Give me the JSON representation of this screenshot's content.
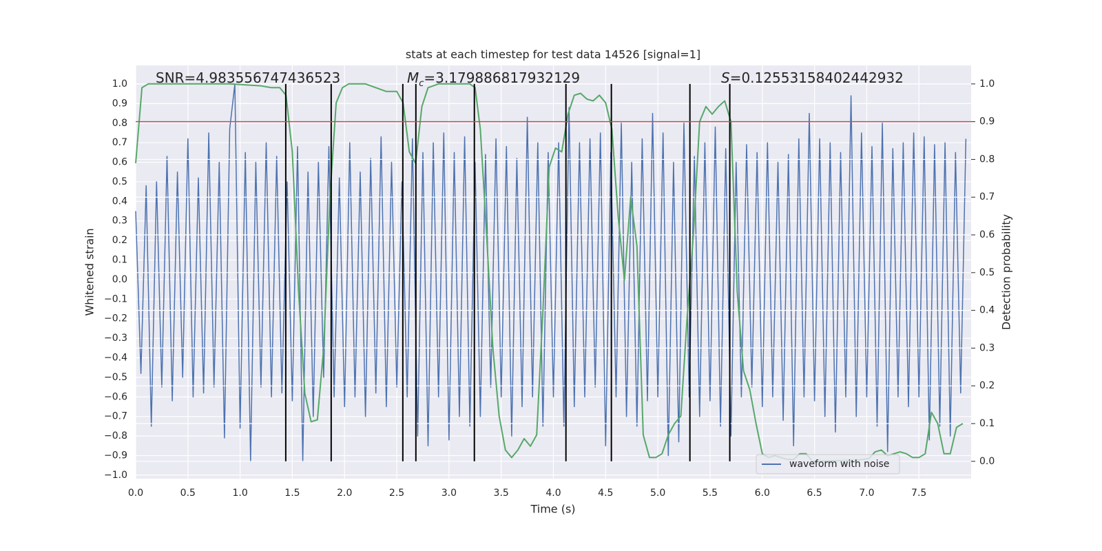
{
  "chart_data": {
    "type": "line",
    "title": "stats at each timestep for test data 14526 [signal=1]",
    "xlabel": "Time (s)",
    "ylabel": "Whitened strain",
    "y2label": "Detection probability",
    "annotations": [
      {
        "text": "SNR=4.983556747436523"
      },
      {
        "symbol": "M",
        "subscript": "c",
        "text": "=3.179886817932129"
      },
      {
        "symbol": "S",
        "text": "=0.12553158402442932"
      }
    ],
    "xlim": [
      0,
      8.0
    ],
    "xticks": [
      {
        "value": 0,
        "label": "0.0"
      },
      0.5,
      {
        "value": 1,
        "label": "1.0"
      },
      1.5,
      {
        "value": 2,
        "label": "2.0"
      },
      2.5,
      {
        "value": 3,
        "label": "3.0"
      },
      3.5,
      {
        "value": 4,
        "label": "4.0"
      },
      4.5,
      {
        "value": 5,
        "label": "5.0"
      },
      5.5,
      {
        "value": 6,
        "label": "6.0"
      },
      6.5,
      {
        "value": 7,
        "label": "7.0"
      },
      7.5
    ],
    "ylim": [
      -1.018,
      1.095
    ],
    "yticks": [
      {
        "value": -1,
        "label": "−1.0"
      },
      {
        "value": -0.9,
        "label": "−0.9"
      },
      {
        "value": -0.8,
        "label": "−0.8"
      },
      {
        "value": -0.7,
        "label": "−0.7"
      },
      {
        "value": -0.6,
        "label": "−0.6"
      },
      {
        "value": -0.5,
        "label": "−0.5"
      },
      {
        "value": -0.4,
        "label": "−0.4"
      },
      {
        "value": -0.3,
        "label": "−0.3"
      },
      {
        "value": -0.2,
        "label": "−0.2"
      },
      {
        "value": -0.1,
        "label": "−0.1"
      },
      {
        "value": 0,
        "label": "0.0"
      },
      0.1,
      0.2,
      0.3,
      0.4,
      0.5,
      0.6,
      0.7,
      0.8,
      0.9,
      {
        "value": 1,
        "label": "1.0"
      }
    ],
    "y2lim": [
      -0.046,
      1.049
    ],
    "y2ticks": [
      {
        "value": 0,
        "label": "0.0"
      },
      0.1,
      0.2,
      0.3,
      0.4,
      0.5,
      0.6,
      0.7,
      0.8,
      0.9,
      {
        "value": 1,
        "label": "1.0"
      }
    ],
    "grid": true,
    "legend": "lower right",
    "series": [
      {
        "name": "waveform with noise",
        "color": "#4c72b0",
        "x": [
          0,
          0.05,
          0.1,
          0.15,
          0.2,
          0.25,
          0.3,
          0.35,
          0.4,
          0.45,
          0.5,
          0.55,
          0.6,
          0.65,
          0.7,
          0.75,
          0.8,
          0.85,
          0.9,
          0.95,
          1,
          1.05,
          1.1,
          1.15,
          1.2,
          1.25,
          1.3,
          1.35,
          1.4,
          1.45,
          1.5,
          1.55,
          1.6,
          1.65,
          1.7,
          1.75,
          1.8,
          1.85,
          1.9,
          1.95,
          2,
          2.05,
          2.1,
          2.15,
          2.2,
          2.25,
          2.3,
          2.35,
          2.4,
          2.45,
          2.5,
          2.55,
          2.6,
          2.65,
          2.7,
          2.75,
          2.8,
          2.85,
          2.9,
          2.95,
          3,
          3.05,
          3.1,
          3.15,
          3.2,
          3.25,
          3.3,
          3.35,
          3.4,
          3.45,
          3.5,
          3.55,
          3.6,
          3.65,
          3.7,
          3.75,
          3.8,
          3.85,
          3.9,
          3.95,
          4,
          4.05,
          4.1,
          4.15,
          4.2,
          4.25,
          4.3,
          4.35,
          4.4,
          4.45,
          4.5,
          4.55,
          4.6,
          4.65,
          4.7,
          4.75,
          4.8,
          4.85,
          4.9,
          4.95,
          5,
          5.05,
          5.1,
          5.15,
          5.2,
          5.25,
          5.3,
          5.35,
          5.4,
          5.45,
          5.5,
          5.55,
          5.6,
          5.65,
          5.7,
          5.75,
          5.8,
          5.85,
          5.9,
          5.95,
          6,
          6.05,
          6.1,
          6.15,
          6.2,
          6.25,
          6.3,
          6.35,
          6.4,
          6.45,
          6.5,
          6.55,
          6.6,
          6.65,
          6.7,
          6.75,
          6.8,
          6.85,
          6.9,
          6.95,
          7,
          7.05,
          7.1,
          7.15,
          7.2,
          7.25,
          7.3,
          7.35,
          7.4,
          7.45,
          7.5,
          7.55,
          7.6,
          7.65,
          7.7,
          7.75,
          7.8,
          7.85,
          7.9,
          7.95
        ],
        "values": [
          0.35,
          -0.48,
          0.48,
          -0.75,
          0.5,
          -0.55,
          0.63,
          -0.62,
          0.55,
          -0.5,
          0.72,
          -0.6,
          0.52,
          -0.58,
          0.75,
          -0.55,
          0.6,
          -0.81,
          0.77,
          1.0,
          -0.76,
          0.65,
          -0.93,
          0.6,
          -0.55,
          0.7,
          -0.6,
          0.63,
          -0.58,
          0.5,
          -0.62,
          0.68,
          -0.93,
          0.55,
          -0.7,
          0.6,
          -0.5,
          0.68,
          -0.6,
          0.52,
          -0.65,
          0.7,
          -0.6,
          0.55,
          -0.7,
          0.62,
          -0.58,
          0.73,
          -0.65,
          0.6,
          -0.55,
          0.5,
          -0.6,
          0.72,
          -0.8,
          0.65,
          -0.85,
          0.7,
          -0.6,
          0.75,
          -0.82,
          0.65,
          -0.7,
          0.73,
          -0.75,
          0.6,
          -0.7,
          0.64,
          -0.55,
          0.72,
          -0.6,
          0.68,
          -0.8,
          0.62,
          -0.65,
          0.83,
          -0.6,
          0.7,
          -0.75,
          0.65,
          -0.6,
          0.7,
          -0.75,
          0.88,
          -0.65,
          0.7,
          -0.6,
          0.72,
          -0.55,
          0.75,
          -0.85,
          0.65,
          -0.6,
          0.8,
          -0.7,
          0.6,
          -0.75,
          0.72,
          -0.62,
          0.85,
          -0.6,
          0.75,
          -0.9,
          0.6,
          -0.83,
          0.8,
          -0.6,
          0.63,
          -0.7,
          0.7,
          -0.62,
          0.78,
          -0.75,
          0.67,
          -0.8,
          0.6,
          -0.6,
          0.69,
          -0.55,
          0.65,
          -0.65,
          0.7,
          -0.6,
          0.6,
          -0.72,
          0.64,
          -0.85,
          0.72,
          -0.6,
          0.85,
          -0.62,
          0.72,
          -0.7,
          0.7,
          -0.78,
          0.65,
          -0.6,
          0.94,
          -0.7,
          0.75,
          -0.6,
          0.68,
          -0.75,
          0.8,
          -0.88,
          0.67,
          -0.6,
          0.7,
          -0.65,
          0.75,
          -0.6,
          0.73,
          -0.82,
          0.69,
          -0.75,
          0.7,
          -0.8,
          0.65,
          -0.58,
          0.72
        ]
      },
      {
        "color": "#55a868",
        "axis": "y2",
        "x": [
          0,
          0.06,
          0.12,
          0.3,
          0.6,
          0.9,
          1.2,
          1.3,
          1.38,
          1.44,
          1.5,
          1.56,
          1.62,
          1.68,
          1.74,
          1.8,
          1.86,
          1.92,
          1.98,
          2.04,
          2.2,
          2.3,
          2.4,
          2.5,
          2.56,
          2.62,
          2.68,
          2.74,
          2.8,
          2.9,
          3.2,
          3.25,
          3.3,
          3.36,
          3.42,
          3.48,
          3.54,
          3.6,
          3.66,
          3.72,
          3.78,
          3.84,
          3.9,
          3.96,
          4.02,
          4.08,
          4.14,
          4.2,
          4.26,
          4.32,
          4.38,
          4.44,
          4.5,
          4.56,
          4.62,
          4.68,
          4.74,
          4.8,
          4.86,
          4.92,
          4.98,
          5.04,
          5.1,
          5.16,
          5.22,
          5.28,
          5.34,
          5.4,
          5.46,
          5.52,
          5.58,
          5.64,
          5.7,
          5.76,
          5.82,
          5.88,
          5.94,
          6.0,
          6.06,
          6.12,
          6.18,
          6.24,
          6.3,
          6.36,
          6.42,
          6.48,
          6.6,
          6.9,
          7.02,
          7.08,
          7.14,
          7.2,
          7.26,
          7.32,
          7.38,
          7.44,
          7.5,
          7.56,
          7.62,
          7.68,
          7.74,
          7.8,
          7.86,
          7.92
        ],
        "values": [
          0.79,
          0.99,
          1.0,
          1.0,
          1.0,
          1.0,
          0.995,
          0.99,
          0.99,
          0.97,
          0.82,
          0.45,
          0.18,
          0.105,
          0.11,
          0.3,
          0.7,
          0.95,
          0.99,
          1.0,
          1.0,
          0.99,
          0.98,
          0.98,
          0.95,
          0.82,
          0.79,
          0.94,
          0.99,
          1.0,
          1.0,
          0.99,
          0.88,
          0.6,
          0.3,
          0.12,
          0.03,
          0.01,
          0.03,
          0.06,
          0.04,
          0.07,
          0.4,
          0.78,
          0.83,
          0.82,
          0.92,
          0.97,
          0.975,
          0.96,
          0.955,
          0.97,
          0.95,
          0.88,
          0.65,
          0.48,
          0.7,
          0.57,
          0.07,
          0.01,
          0.01,
          0.02,
          0.07,
          0.1,
          0.12,
          0.38,
          0.6,
          0.9,
          0.94,
          0.92,
          0.94,
          0.955,
          0.9,
          0.45,
          0.24,
          0.19,
          0.1,
          0.02,
          0.01,
          0.015,
          0.01,
          0.005,
          0.005,
          0.02,
          0.02,
          0.0,
          0.001,
          0.003,
          0.007,
          0.025,
          0.03,
          0.015,
          0.02,
          0.025,
          0.02,
          0.01,
          0.01,
          0.02,
          0.13,
          0.1,
          0.02,
          0.02,
          0.09,
          0.1
        ]
      }
    ],
    "hlines": [
      {
        "value": 0.9,
        "axis": "y2",
        "color": "#c44e52"
      }
    ],
    "vlines": {
      "x": [
        1.437,
        1.872,
        2.558,
        2.683,
        3.243,
        4.12,
        4.555,
        5.307,
        5.689
      ],
      "ymin": 0,
      "ymax": 1,
      "axis": "y2",
      "color": "#000000"
    }
  }
}
